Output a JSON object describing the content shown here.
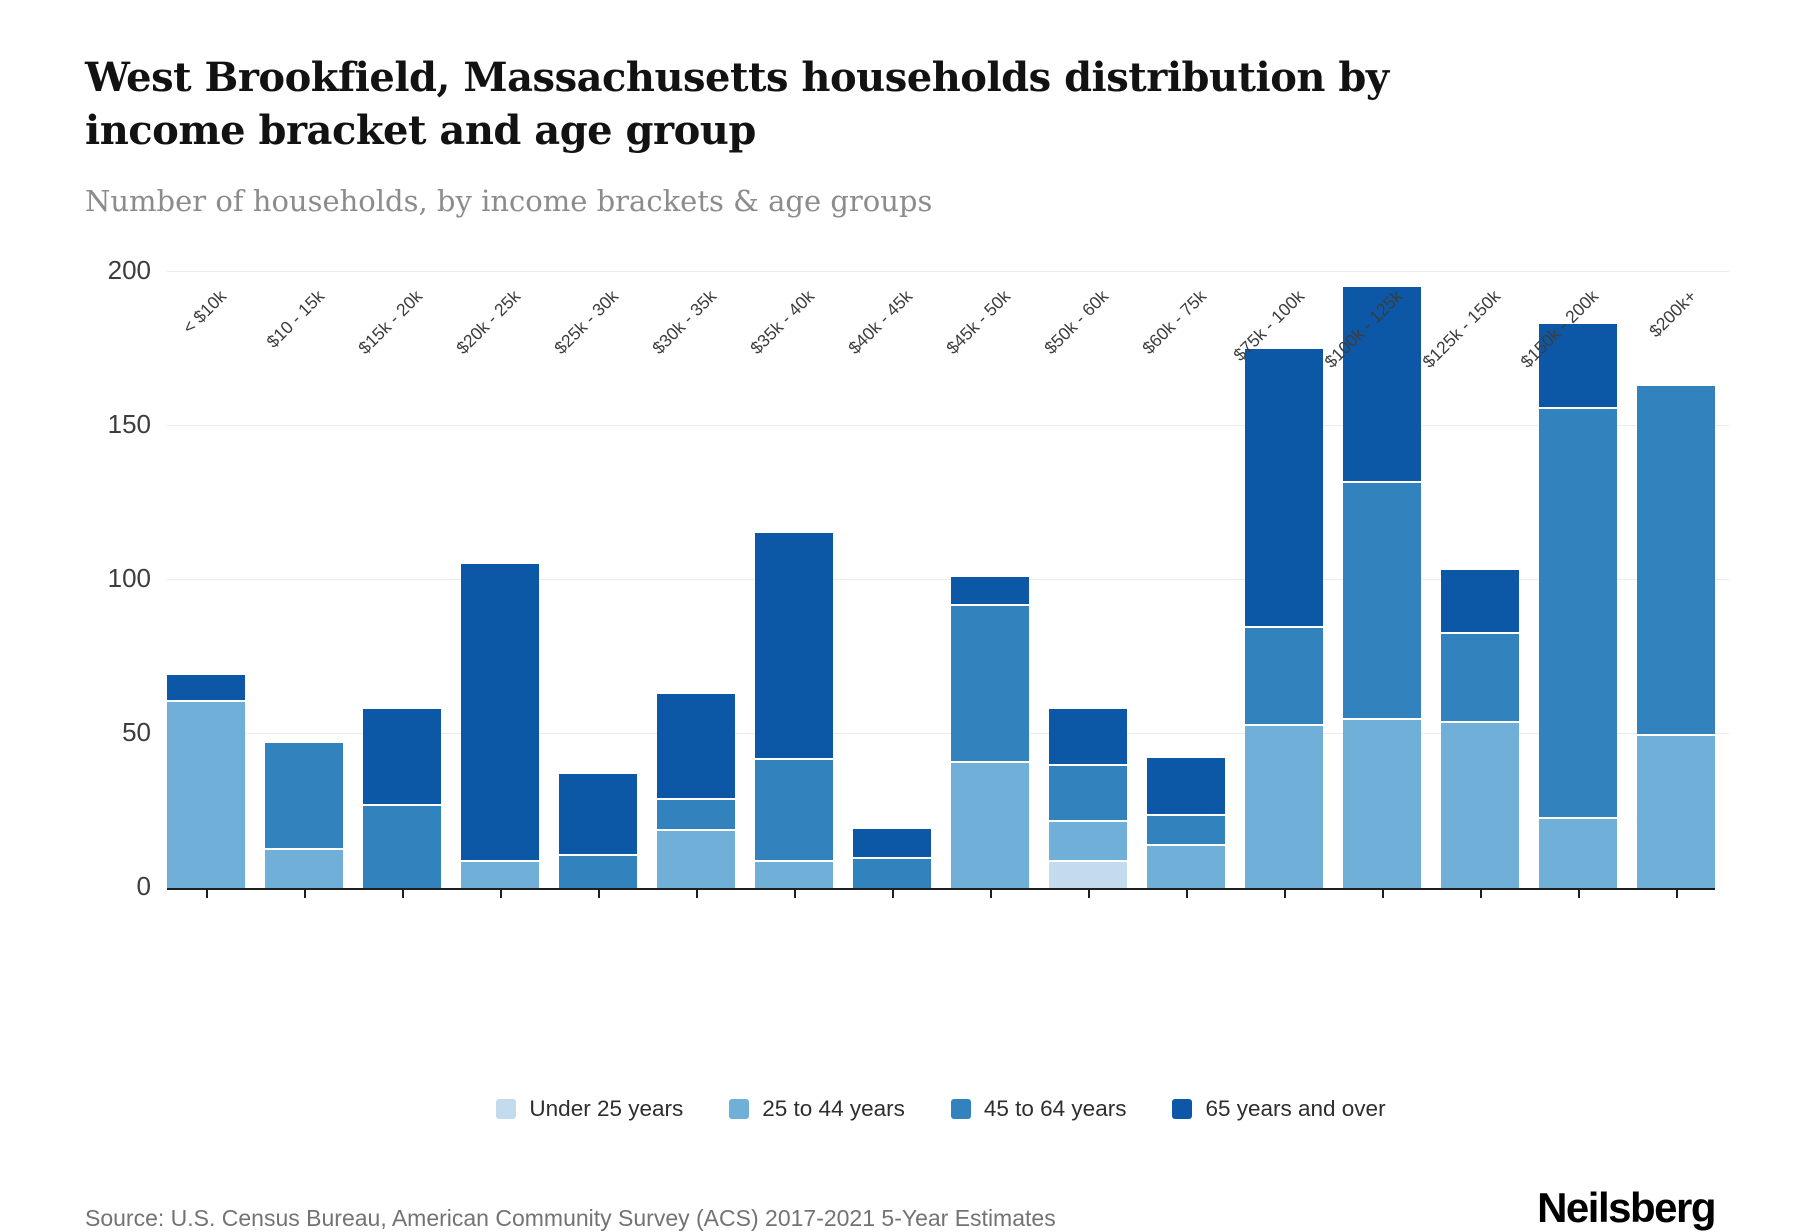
{
  "header": {
    "title": "West Brookfield, Massachusetts households distribution by income bracket and age group",
    "subtitle": "Number of households, by income brackets & age groups"
  },
  "chart_data": {
    "type": "bar",
    "stacked": true,
    "title": "West Brookfield, Massachusetts households distribution by income bracket and age group",
    "subtitle": "Number of households, by income brackets & age groups",
    "categories": [
      "< $10k",
      "$10 - 15k",
      "$15k - 20k",
      "$20k - 25k",
      "$25k - 30k",
      "$30k - 35k",
      "$35k - 40k",
      "$40k - 45k",
      "$45k - 50k",
      "$50k - 60k",
      "$60k - 75k",
      "$75k - 100k",
      "$100k - 125k",
      "$125k - 150k",
      "$150k - 200k",
      "$200k+"
    ],
    "series": [
      {
        "name": "Under 25 years",
        "color": "#c3dbec",
        "values": [
          0,
          0,
          0,
          0,
          0,
          0,
          0,
          0,
          0,
          9,
          0,
          0,
          0,
          0,
          0,
          0
        ]
      },
      {
        "name": "25 to 44 years",
        "color": "#6fafd8",
        "values": [
          61,
          13,
          0,
          9,
          0,
          19,
          9,
          0,
          41,
          13,
          14,
          53,
          55,
          54,
          23,
          50
        ]
      },
      {
        "name": "45 to 64 years",
        "color": "#3182bd",
        "values": [
          0,
          34,
          27,
          0,
          11,
          10,
          33,
          10,
          51,
          18,
          10,
          32,
          77,
          29,
          133,
          113
        ]
      },
      {
        "name": "65 years and over",
        "color": "#0d57a7",
        "values": [
          8,
          0,
          31,
          96,
          26,
          34,
          73,
          9,
          9,
          18,
          18,
          90,
          63,
          20,
          27,
          0
        ]
      }
    ],
    "totals": [
      69,
      47,
      58,
      105,
      37,
      63,
      115,
      19,
      101,
      58,
      42,
      175,
      195,
      103,
      183,
      163
    ],
    "xlabel": "",
    "ylabel": "",
    "ylim": [
      0,
      200
    ],
    "yticks": [
      0,
      50,
      100,
      150,
      200
    ],
    "grid": true,
    "legend_position": "bottom"
  },
  "footer": {
    "source": "Source: U.S. Census Bureau, American Community Survey (ACS) 2017-2021 5-Year Estimates",
    "logo": "Neilsberg"
  }
}
